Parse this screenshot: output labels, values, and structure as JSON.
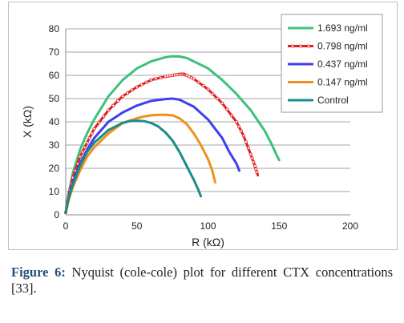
{
  "chart_data": {
    "type": "scatter",
    "xlabel": "R (kΩ)",
    "ylabel": "X (kΩ)",
    "xlim": [
      0,
      200
    ],
    "ylim": [
      0,
      80
    ],
    "xticks": [
      0,
      50,
      100,
      150,
      200
    ],
    "yticks": [
      0,
      10,
      20,
      30,
      40,
      50,
      60,
      70,
      80
    ],
    "grid": "horizontal",
    "legend_position": "top-right",
    "series": [
      {
        "name": "1.693 ng/ml",
        "color": "#3cc27c",
        "marker": "line",
        "x": [
          0,
          2,
          5,
          10,
          15,
          20,
          30,
          40,
          50,
          60,
          70,
          75,
          80,
          85,
          90,
          100,
          110,
          120,
          130,
          140,
          145,
          148,
          150
        ],
        "y": [
          1,
          9,
          18,
          28,
          35,
          41,
          51,
          58,
          63,
          66,
          67.8,
          68.2,
          68.1,
          67.5,
          66,
          63,
          58,
          52,
          45,
          36,
          30,
          26,
          23.5
        ]
      },
      {
        "name": "0.798 ng/ml",
        "color": "#e02020",
        "marker": "circle",
        "x": [
          0,
          2,
          5,
          10,
          15,
          20,
          30,
          40,
          50,
          60,
          70,
          75,
          80,
          83,
          85,
          90,
          100,
          110,
          120,
          125,
          130,
          133,
          135
        ],
        "y": [
          1,
          8,
          16,
          25,
          31,
          37,
          45,
          51,
          55,
          58,
          59.5,
          60,
          60.5,
          60.5,
          60,
          58.5,
          54,
          48,
          40,
          34,
          26,
          21,
          17
        ]
      },
      {
        "name": "0.437 ng/ml",
        "color": "#3f3ff0",
        "marker": "line",
        "x": [
          0,
          2,
          5,
          10,
          15,
          20,
          30,
          40,
          50,
          55,
          60,
          70,
          75,
          80,
          90,
          100,
          110,
          115,
          120,
          122
        ],
        "y": [
          1,
          7,
          14,
          22,
          28,
          33,
          40,
          44,
          47,
          48,
          49,
          49.8,
          50,
          49.5,
          46.5,
          41,
          33,
          27,
          22,
          19
        ]
      },
      {
        "name": "0.147 ng/ml",
        "color": "#f0901a",
        "marker": "line",
        "x": [
          0,
          2,
          5,
          10,
          15,
          20,
          30,
          40,
          50,
          55,
          60,
          65,
          70,
          75,
          80,
          85,
          90,
          95,
          100,
          103,
          105
        ],
        "y": [
          1,
          6,
          12,
          19,
          25,
          29,
          35,
          39.5,
          41.5,
          42.3,
          42.8,
          43,
          43,
          42.8,
          41.5,
          39,
          35,
          30,
          24,
          19,
          14
        ]
      },
      {
        "name": "Control",
        "color": "#1a8c8c",
        "marker": "line",
        "x": [
          0,
          2,
          5,
          10,
          15,
          20,
          30,
          40,
          45,
          50,
          55,
          60,
          65,
          70,
          75,
          80,
          85,
          90,
          93,
          95
        ],
        "y": [
          1,
          7,
          13,
          21,
          27,
          31,
          36.5,
          39.5,
          40.3,
          40.5,
          40.3,
          39.5,
          38,
          35.5,
          32,
          27,
          21,
          15,
          11,
          8
        ]
      }
    ]
  },
  "caption": {
    "label": "Figure 6:",
    "text": " Nyquist (cole-cole) plot for different CTX concentrations [33]."
  }
}
